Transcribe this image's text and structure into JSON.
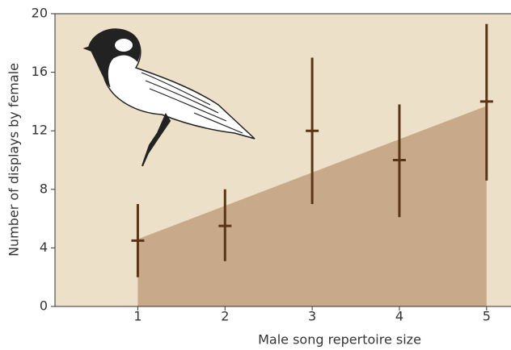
{
  "chart_data": {
    "type": "errorbar",
    "xlabel": "Male song repertoire size",
    "ylabel": "Number of displays by female",
    "x": [
      1,
      2,
      3,
      4,
      5
    ],
    "values": [
      4.5,
      5.5,
      12,
      10,
      14
    ],
    "low": [
      2,
      3.1,
      7,
      6.1,
      8.6
    ],
    "high": [
      7,
      8,
      17,
      13.8,
      19.3
    ],
    "color": "#5a3515",
    "trend": {
      "x": [
        1,
        5
      ],
      "values": [
        4.6,
        13.7
      ],
      "color": "#c8aa8a"
    },
    "background": "#ede0c8",
    "xlim": [
      0.05,
      5.28
    ],
    "xticks": [
      1,
      2,
      3,
      4,
      5
    ],
    "ylim": [
      0,
      20
    ],
    "yticks": [
      0,
      4,
      8,
      12,
      16,
      20
    ]
  }
}
